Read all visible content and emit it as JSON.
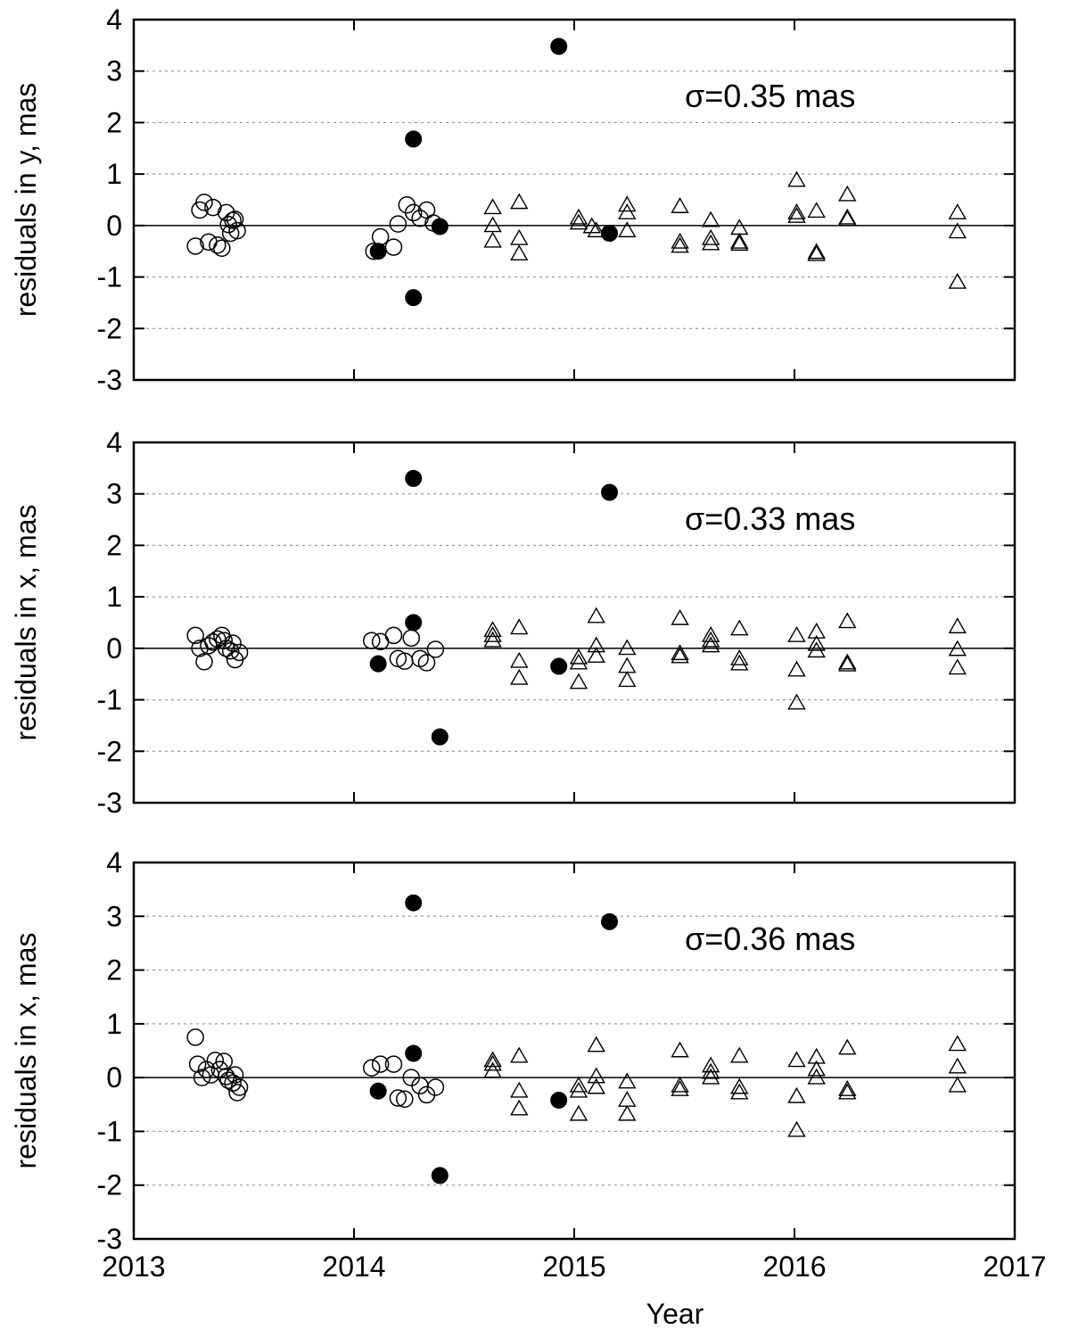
{
  "xlabel": "Year",
  "x_ticks": [
    2013,
    2014,
    2015,
    2016,
    2017
  ],
  "xlim": [
    2013,
    2017
  ],
  "chart_data": [
    {
      "type": "scatter",
      "ylabel": "residuals in y, mas",
      "annotation": "σ=0.35 mas",
      "ylim": [
        -3,
        4
      ],
      "y_ticks": [
        -3,
        -2,
        -1,
        0,
        1,
        2,
        3,
        4
      ],
      "series": [
        {
          "name": "open-circles",
          "points": [
            [
              2013.28,
              -0.4
            ],
            [
              2013.3,
              0.3
            ],
            [
              2013.32,
              0.45
            ],
            [
              2013.34,
              -0.32
            ],
            [
              2013.36,
              0.35
            ],
            [
              2013.38,
              -0.38
            ],
            [
              2013.4,
              -0.44
            ],
            [
              2013.42,
              0.25
            ],
            [
              2013.43,
              0.02
            ],
            [
              2013.44,
              -0.15
            ],
            [
              2013.45,
              0.1
            ],
            [
              2013.46,
              0.12
            ],
            [
              2013.47,
              -0.1
            ],
            [
              2014.09,
              -0.5
            ],
            [
              2014.12,
              -0.22
            ],
            [
              2014.18,
              -0.42
            ],
            [
              2014.2,
              0.03
            ],
            [
              2014.24,
              0.4
            ],
            [
              2014.27,
              0.25
            ],
            [
              2014.3,
              0.14
            ],
            [
              2014.33,
              0.3
            ],
            [
              2014.36,
              0.05
            ]
          ]
        },
        {
          "name": "filled-circles",
          "points": [
            [
              2014.11,
              -0.5
            ],
            [
              2014.27,
              1.68
            ],
            [
              2014.27,
              -1.4
            ],
            [
              2014.39,
              -0.02
            ],
            [
              2014.93,
              3.48
            ],
            [
              2015.16,
              -0.15
            ]
          ]
        },
        {
          "name": "triangles",
          "points": [
            [
              2014.63,
              0.35
            ],
            [
              2014.63,
              0.0
            ],
            [
              2014.63,
              -0.3
            ],
            [
              2014.75,
              0.45
            ],
            [
              2014.75,
              -0.25
            ],
            [
              2014.75,
              -0.55
            ],
            [
              2015.02,
              0.15
            ],
            [
              2015.02,
              0.05
            ],
            [
              2015.08,
              -0.02
            ],
            [
              2015.1,
              -0.1
            ],
            [
              2015.24,
              0.4
            ],
            [
              2015.24,
              0.25
            ],
            [
              2015.24,
              -0.1
            ],
            [
              2015.48,
              0.37
            ],
            [
              2015.48,
              -0.32
            ],
            [
              2015.48,
              -0.4
            ],
            [
              2015.62,
              0.1
            ],
            [
              2015.62,
              -0.25
            ],
            [
              2015.62,
              -0.35
            ],
            [
              2015.75,
              -0.05
            ],
            [
              2015.75,
              -0.32
            ],
            [
              2015.75,
              -0.36
            ],
            [
              2016.01,
              0.88
            ],
            [
              2016.01,
              0.25
            ],
            [
              2016.01,
              0.18
            ],
            [
              2016.1,
              0.28
            ],
            [
              2016.1,
              -0.52
            ],
            [
              2016.1,
              -0.56
            ],
            [
              2016.24,
              0.6
            ],
            [
              2016.24,
              0.15
            ],
            [
              2016.24,
              0.12
            ],
            [
              2016.74,
              0.25
            ],
            [
              2016.74,
              -0.12
            ],
            [
              2016.74,
              -1.1
            ]
          ]
        }
      ]
    },
    {
      "type": "scatter",
      "ylabel": "residuals in x, mas",
      "annotation": "σ=0.33 mas",
      "ylim": [
        -3,
        4
      ],
      "y_ticks": [
        -3,
        -2,
        -1,
        0,
        1,
        2,
        3,
        4
      ],
      "series": [
        {
          "name": "open-circles",
          "points": [
            [
              2013.28,
              0.25
            ],
            [
              2013.3,
              0.0
            ],
            [
              2013.32,
              -0.26
            ],
            [
              2013.34,
              0.05
            ],
            [
              2013.36,
              0.12
            ],
            [
              2013.38,
              0.18
            ],
            [
              2013.4,
              0.25
            ],
            [
              2013.41,
              0.15
            ],
            [
              2013.42,
              0.0
            ],
            [
              2013.44,
              -0.05
            ],
            [
              2013.45,
              0.1
            ],
            [
              2013.46,
              -0.22
            ],
            [
              2013.48,
              -0.08
            ],
            [
              2014.08,
              0.15
            ],
            [
              2014.12,
              0.13
            ],
            [
              2014.18,
              0.25
            ],
            [
              2014.2,
              -0.2
            ],
            [
              2014.23,
              -0.25
            ],
            [
              2014.26,
              0.2
            ],
            [
              2014.3,
              -0.2
            ],
            [
              2014.33,
              -0.28
            ],
            [
              2014.37,
              -0.02
            ]
          ]
        },
        {
          "name": "filled-circles",
          "points": [
            [
              2014.11,
              -0.3
            ],
            [
              2014.27,
              3.3
            ],
            [
              2014.27,
              0.5
            ],
            [
              2014.39,
              -1.72
            ],
            [
              2014.93,
              -0.35
            ],
            [
              2015.16,
              3.03
            ]
          ]
        },
        {
          "name": "triangles",
          "points": [
            [
              2014.63,
              0.35
            ],
            [
              2014.63,
              0.25
            ],
            [
              2014.63,
              0.15
            ],
            [
              2014.75,
              0.4
            ],
            [
              2014.75,
              -0.25
            ],
            [
              2014.75,
              -0.58
            ],
            [
              2015.02,
              -0.18
            ],
            [
              2015.02,
              -0.28
            ],
            [
              2015.02,
              -0.66
            ],
            [
              2015.1,
              0.62
            ],
            [
              2015.1,
              0.05
            ],
            [
              2015.1,
              -0.15
            ],
            [
              2015.24,
              0.0
            ],
            [
              2015.24,
              -0.35
            ],
            [
              2015.24,
              -0.62
            ],
            [
              2015.48,
              0.58
            ],
            [
              2015.48,
              -0.1
            ],
            [
              2015.48,
              -0.16
            ],
            [
              2015.62,
              0.25
            ],
            [
              2015.62,
              0.15
            ],
            [
              2015.62,
              0.05
            ],
            [
              2015.75,
              0.38
            ],
            [
              2015.75,
              -0.2
            ],
            [
              2015.75,
              -0.3
            ],
            [
              2016.01,
              0.25
            ],
            [
              2016.01,
              -0.42
            ],
            [
              2016.01,
              -1.06
            ],
            [
              2016.1,
              0.32
            ],
            [
              2016.1,
              0.08
            ],
            [
              2016.1,
              -0.05
            ],
            [
              2016.24,
              0.52
            ],
            [
              2016.24,
              -0.28
            ],
            [
              2016.24,
              -0.32
            ],
            [
              2016.74,
              0.42
            ],
            [
              2016.74,
              -0.02
            ],
            [
              2016.74,
              -0.38
            ]
          ]
        }
      ]
    },
    {
      "type": "scatter",
      "ylabel": "residuals in x, mas",
      "annotation": "σ=0.36 mas",
      "ylim": [
        -3,
        4
      ],
      "y_ticks": [
        -3,
        -2,
        -1,
        0,
        1,
        2,
        3,
        4
      ],
      "series": [
        {
          "name": "open-circles",
          "points": [
            [
              2013.28,
              0.75
            ],
            [
              2013.29,
              0.25
            ],
            [
              2013.31,
              0.0
            ],
            [
              2013.33,
              0.15
            ],
            [
              2013.35,
              0.05
            ],
            [
              2013.37,
              0.32
            ],
            [
              2013.39,
              0.15
            ],
            [
              2013.41,
              0.3
            ],
            [
              2013.42,
              0.02
            ],
            [
              2013.43,
              -0.05
            ],
            [
              2013.45,
              -0.1
            ],
            [
              2013.46,
              0.05
            ],
            [
              2013.47,
              -0.28
            ],
            [
              2013.48,
              -0.18
            ],
            [
              2014.08,
              0.18
            ],
            [
              2014.12,
              0.25
            ],
            [
              2014.18,
              0.25
            ],
            [
              2014.2,
              -0.38
            ],
            [
              2014.23,
              -0.4
            ],
            [
              2014.26,
              0.0
            ],
            [
              2014.3,
              -0.15
            ],
            [
              2014.33,
              -0.32
            ],
            [
              2014.37,
              -0.18
            ]
          ]
        },
        {
          "name": "filled-circles",
          "points": [
            [
              2014.11,
              -0.25
            ],
            [
              2014.27,
              3.25
            ],
            [
              2014.27,
              0.45
            ],
            [
              2014.39,
              -1.82
            ],
            [
              2014.93,
              -0.42
            ],
            [
              2015.16,
              2.9
            ]
          ]
        },
        {
          "name": "triangles",
          "points": [
            [
              2014.63,
              0.32
            ],
            [
              2014.63,
              0.25
            ],
            [
              2014.63,
              0.12
            ],
            [
              2014.75,
              0.4
            ],
            [
              2014.75,
              -0.25
            ],
            [
              2014.75,
              -0.58
            ],
            [
              2015.02,
              -0.15
            ],
            [
              2015.02,
              -0.25
            ],
            [
              2015.02,
              -0.68
            ],
            [
              2015.1,
              0.6
            ],
            [
              2015.1,
              0.02
            ],
            [
              2015.1,
              -0.18
            ],
            [
              2015.24,
              -0.08
            ],
            [
              2015.24,
              -0.42
            ],
            [
              2015.24,
              -0.68
            ],
            [
              2015.48,
              0.5
            ],
            [
              2015.48,
              -0.15
            ],
            [
              2015.48,
              -0.22
            ],
            [
              2015.62,
              0.22
            ],
            [
              2015.62,
              0.1
            ],
            [
              2015.62,
              0.0
            ],
            [
              2015.75,
              0.4
            ],
            [
              2015.75,
              -0.18
            ],
            [
              2015.75,
              -0.28
            ],
            [
              2016.01,
              0.32
            ],
            [
              2016.01,
              -0.35
            ],
            [
              2016.01,
              -0.98
            ],
            [
              2016.1,
              0.38
            ],
            [
              2016.1,
              0.15
            ],
            [
              2016.1,
              0.0
            ],
            [
              2016.24,
              0.55
            ],
            [
              2016.24,
              -0.22
            ],
            [
              2016.24,
              -0.28
            ],
            [
              2016.74,
              0.62
            ],
            [
              2016.74,
              0.2
            ],
            [
              2016.74,
              -0.15
            ]
          ]
        }
      ]
    }
  ]
}
